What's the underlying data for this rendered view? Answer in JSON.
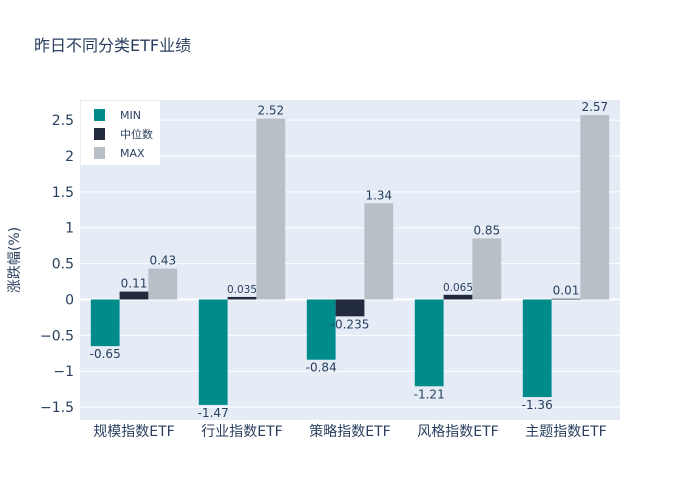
{
  "chart_data": {
    "type": "bar",
    "title": "昨日不同分类ETF业绩",
    "xlabel": "",
    "ylabel": "涨跌幅(%)",
    "categories": [
      "规模指数ETF",
      "行业指数ETF",
      "策略指数ETF",
      "风格指数ETF",
      "主题指数ETF"
    ],
    "series": [
      {
        "name": "MIN",
        "color": "#008b8b",
        "values": [
          -0.65,
          -1.47,
          -0.84,
          -1.21,
          -1.36
        ],
        "labels": [
          "-0.65",
          "-1.47",
          "-0.84",
          "-1.21",
          "-1.36"
        ]
      },
      {
        "name": "中位数",
        "color": "#222b3d",
        "values": [
          0.11,
          0.035,
          -0.235,
          0.065,
          0.01
        ],
        "labels": [
          "0.11",
          "0.035",
          "-0.235",
          "0.065",
          "0.01"
        ]
      },
      {
        "name": "MAX",
        "color": "#b8bfc7",
        "values": [
          0.43,
          2.52,
          1.34,
          0.85,
          2.57
        ],
        "labels": [
          "0.43",
          "2.52",
          "1.34",
          "0.85",
          "2.57"
        ]
      }
    ],
    "ylim": [
      -1.68,
      2.78
    ],
    "yticks": [
      -1.5,
      -1,
      -0.5,
      0,
      0.5,
      1,
      1.5,
      2,
      2.5
    ],
    "ytick_labels": [
      "−1.5",
      "−1",
      "−0.5",
      "0",
      "0.5",
      "1",
      "1.5",
      "2",
      "2.5"
    ],
    "legend_position": "top-left",
    "grid": true
  }
}
